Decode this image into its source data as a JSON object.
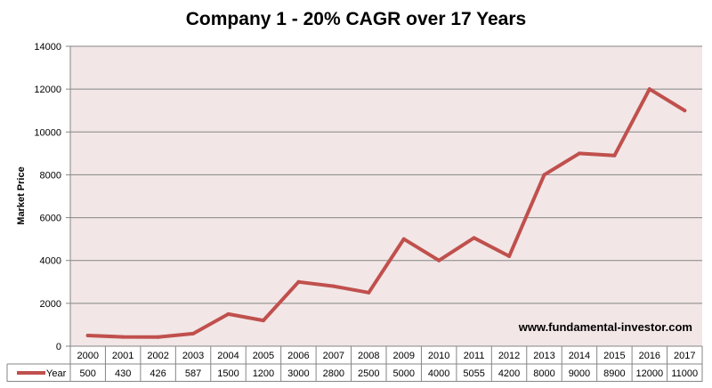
{
  "chart_data": {
    "type": "line",
    "title": "Company 1 - 20% CAGR over 17 Years",
    "ylabel": "Market Price",
    "xlabel": "",
    "categories": [
      "2000",
      "2001",
      "2002",
      "2003",
      "2004",
      "2005",
      "2006",
      "2007",
      "2008",
      "2009",
      "2010",
      "2011",
      "2012",
      "2013",
      "2014",
      "2015",
      "2016",
      "2017"
    ],
    "series": [
      {
        "name": "Year",
        "values": [
          500,
          430,
          426,
          587,
          1500,
          1200,
          3000,
          2800,
          2500,
          5000,
          4000,
          5055,
          4200,
          8000,
          9000,
          8900,
          12000,
          11000
        ]
      }
    ],
    "ylim": [
      0,
      14000
    ],
    "yticks": [
      "0",
      "2000",
      "4000",
      "6000",
      "8000",
      "10000",
      "12000",
      "14000"
    ],
    "grid": true,
    "legend": "data-table-left",
    "data_table": true,
    "colors": {
      "series": "#C0504D",
      "plot_bg": "#F2E6E6",
      "grid": "#868686"
    }
  },
  "watermark": "www.fundamental-investor.com"
}
